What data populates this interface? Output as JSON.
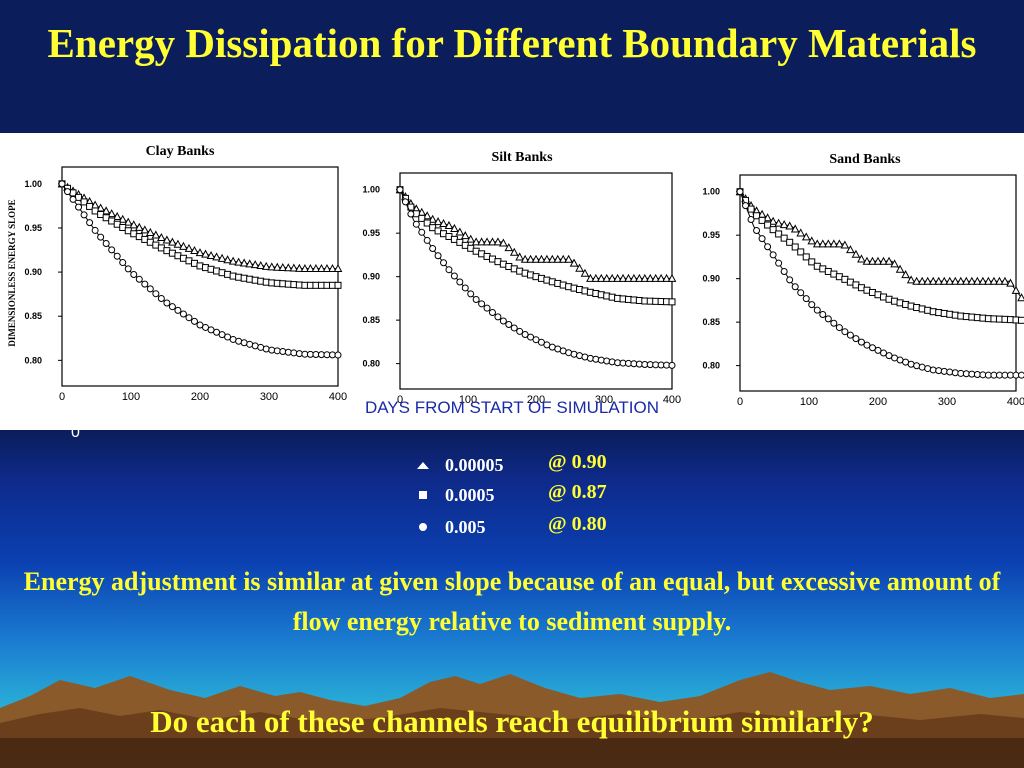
{
  "title": "Energy Dissipation for Different Boundary Materials",
  "figure": {
    "xlabel": "DAYS FROM START OF SIMULATION",
    "ylabel": "DIMENSIONLESS ENERGY SLOPE",
    "stray_label": "0"
  },
  "legend": [
    {
      "symbol": "triangle",
      "value": "0.00005",
      "at": "@ 0.90"
    },
    {
      "symbol": "square",
      "value": "0.0005",
      "at": "@ 0.87"
    },
    {
      "symbol": "circle",
      "value": "0.005",
      "at": "@ 0.80"
    }
  ],
  "note": "Energy adjustment is similar at given slope because of an equal, but excessive amount of flow energy relative to sediment supply.",
  "question": "Do each of these channels reach equilibrium similarly?",
  "colors": {
    "title": "#ffff33",
    "legend_text": "#ffffff",
    "xlabel": "#1a2aa8"
  },
  "chart_data": [
    {
      "type": "line",
      "title": "Clay Banks",
      "xlim": [
        0,
        400
      ],
      "ylim": [
        0.78,
        1.01
      ],
      "xticks": [
        "0",
        "100",
        "200",
        "300",
        "400"
      ],
      "yticks": [
        "1.00",
        "0.95",
        "0.90",
        "0.85",
        "0.80"
      ],
      "x": [
        0,
        50,
        100,
        150,
        200,
        250,
        300,
        350,
        400
      ],
      "series": [
        {
          "name": "0.00005",
          "marker": "triangle",
          "values": [
            1.0,
            0.975,
            0.955,
            0.937,
            0.922,
            0.912,
            0.906,
            0.904,
            0.904
          ]
        },
        {
          "name": "0.0005",
          "marker": "square",
          "values": [
            1.0,
            0.968,
            0.945,
            0.925,
            0.907,
            0.895,
            0.888,
            0.885,
            0.885
          ]
        },
        {
          "name": "0.005",
          "marker": "circle",
          "values": [
            1.0,
            0.945,
            0.9,
            0.866,
            0.84,
            0.823,
            0.812,
            0.807,
            0.806
          ]
        }
      ]
    },
    {
      "type": "line",
      "title": "Silt Banks",
      "xlim": [
        0,
        400
      ],
      "ylim": [
        0.78,
        1.01
      ],
      "xticks": [
        "0",
        "100",
        "200",
        "300",
        "400"
      ],
      "yticks": [
        "1.00",
        "0.95",
        "0.90",
        "0.85",
        "0.80"
      ],
      "x": [
        0,
        20,
        50,
        75,
        110,
        150,
        180,
        220,
        250,
        280,
        320,
        360,
        400
      ],
      "series": [
        {
          "name": "0.00005",
          "marker": "triangle",
          "values": [
            1.0,
            0.98,
            0.965,
            0.958,
            0.94,
            0.94,
            0.92,
            0.92,
            0.92,
            0.898,
            0.898,
            0.898,
            0.898
          ]
        },
        {
          "name": "0.0005",
          "marker": "square",
          "values": [
            1.0,
            0.975,
            0.955,
            0.945,
            0.93,
            0.915,
            0.905,
            0.895,
            0.888,
            0.882,
            0.875,
            0.872,
            0.871
          ]
        },
        {
          "name": "0.005",
          "marker": "circle",
          "values": [
            1.0,
            0.965,
            0.93,
            0.905,
            0.875,
            0.85,
            0.835,
            0.82,
            0.812,
            0.806,
            0.801,
            0.799,
            0.798
          ]
        }
      ]
    },
    {
      "type": "line",
      "title": "Sand Banks",
      "xlim": [
        0,
        400
      ],
      "ylim": [
        0.78,
        1.01
      ],
      "xticks": [
        "0",
        "100",
        "200",
        "300",
        "400"
      ],
      "yticks": [
        "1.00",
        "0.95",
        "0.90",
        "0.85",
        "0.80"
      ],
      "x": [
        0,
        20,
        50,
        75,
        110,
        150,
        180,
        220,
        250,
        280,
        320,
        360,
        390,
        410
      ],
      "series": [
        {
          "name": "0.00005",
          "marker": "triangle",
          "values": [
            1.0,
            0.98,
            0.965,
            0.96,
            0.94,
            0.94,
            0.92,
            0.92,
            0.897,
            0.897,
            0.897,
            0.897,
            0.897,
            0.876
          ]
        },
        {
          "name": "0.0005",
          "marker": "square",
          "values": [
            1.0,
            0.975,
            0.955,
            0.94,
            0.915,
            0.9,
            0.888,
            0.875,
            0.868,
            0.862,
            0.857,
            0.854,
            0.853,
            0.852
          ]
        },
        {
          "name": "0.005",
          "marker": "circle",
          "values": [
            1.0,
            0.96,
            0.925,
            0.895,
            0.865,
            0.84,
            0.825,
            0.81,
            0.801,
            0.795,
            0.791,
            0.789,
            0.789,
            0.789
          ]
        }
      ]
    }
  ]
}
